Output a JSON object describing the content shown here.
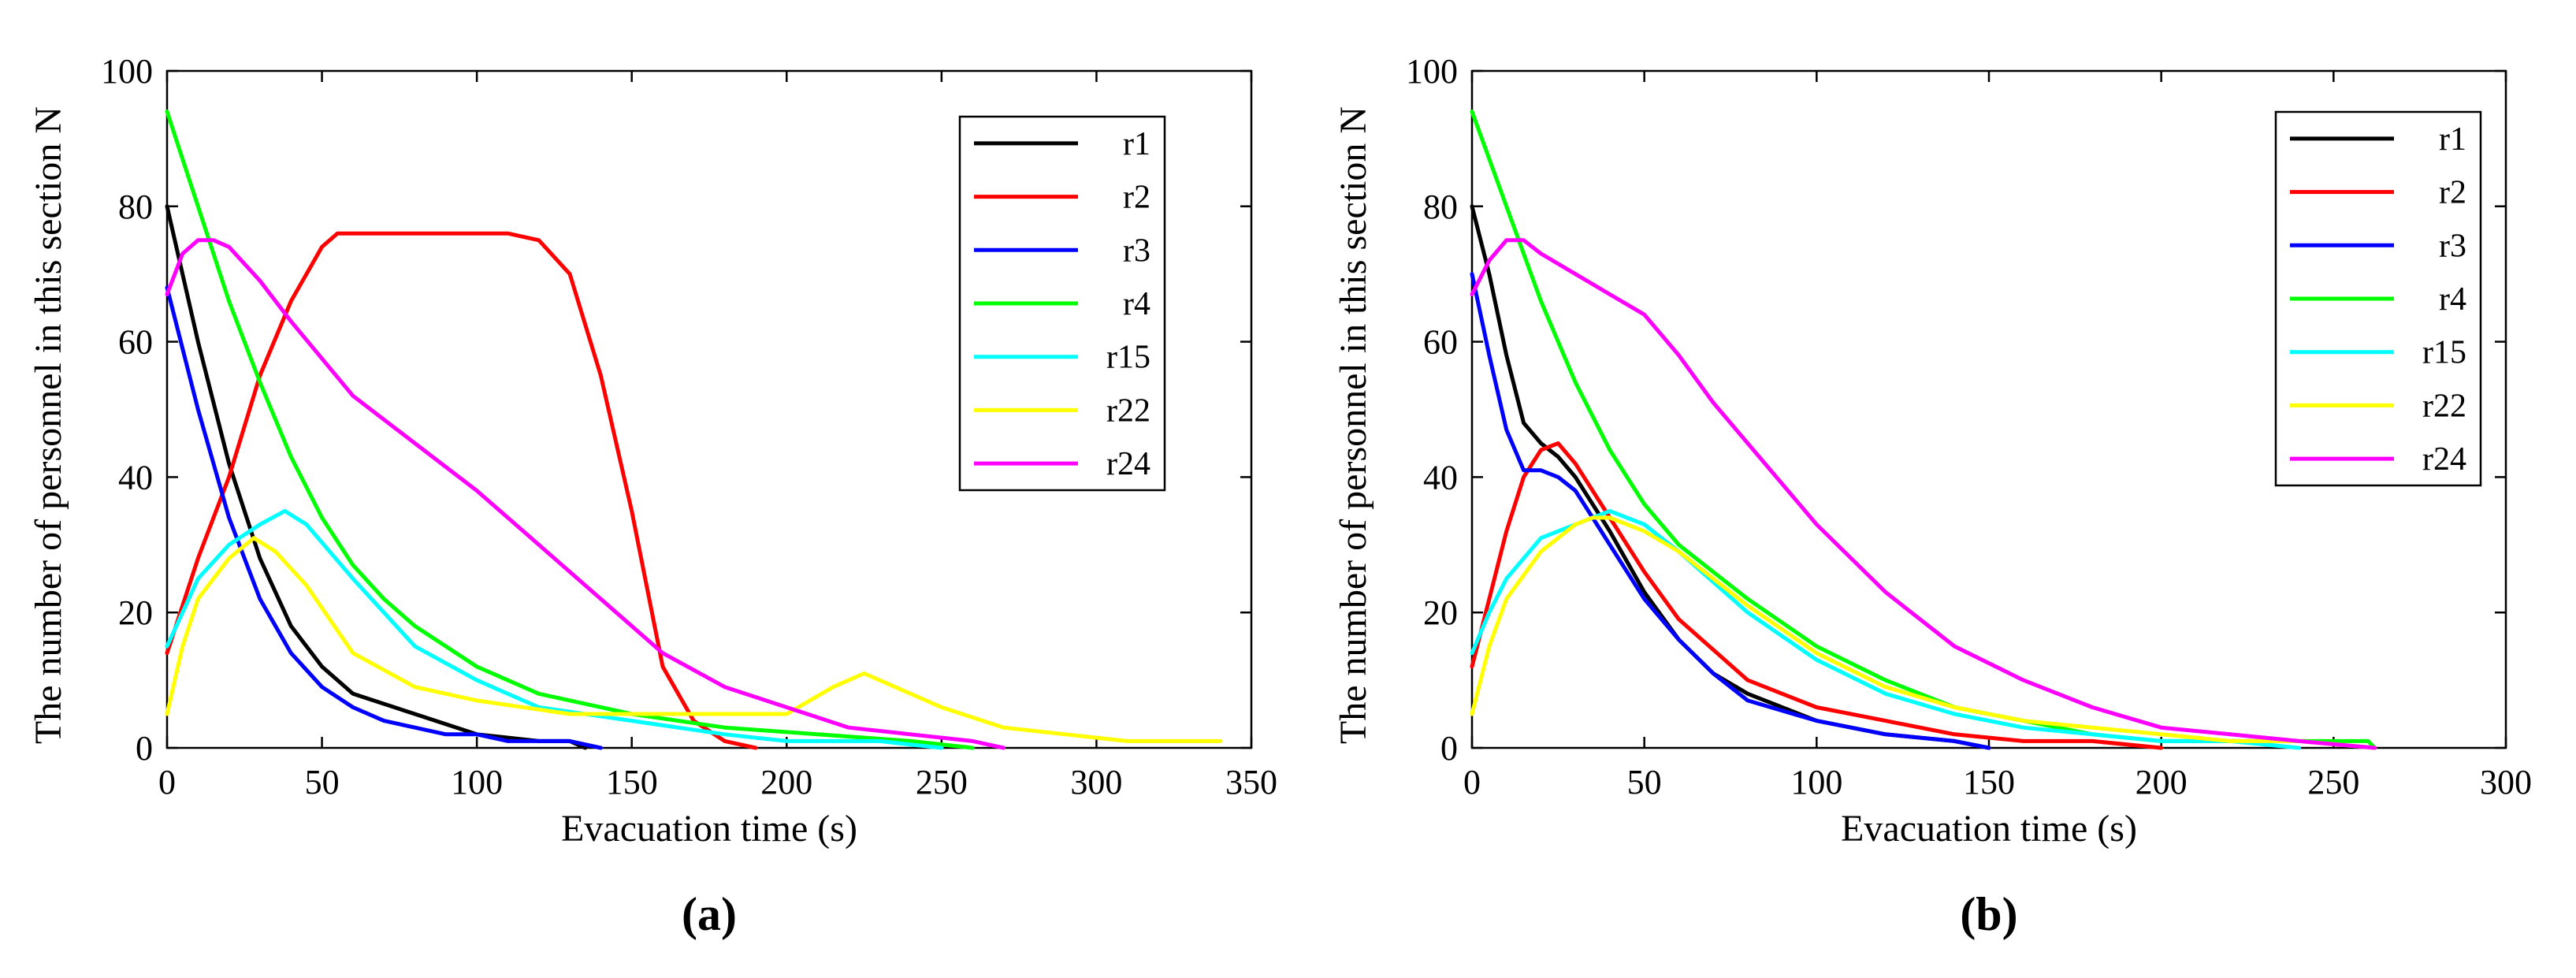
{
  "chart_data": [
    {
      "type": "line",
      "panel": "(a)",
      "xlabel": "Evacuation time (s)",
      "ylabel": "The number of personnel in this section N",
      "xlim": [
        0,
        350
      ],
      "ylim": [
        0,
        100
      ],
      "xticks": [
        0,
        50,
        100,
        150,
        200,
        250,
        300,
        350
      ],
      "yticks": [
        0,
        20,
        40,
        60,
        80,
        100
      ],
      "legend_position": "top-right",
      "series": [
        {
          "name": "r1",
          "color": "#000000",
          "x": [
            0,
            10,
            20,
            30,
            40,
            50,
            60,
            80,
            100,
            120,
            130,
            135
          ],
          "y": [
            80,
            60,
            42,
            28,
            18,
            12,
            8,
            5,
            2,
            1,
            1,
            0
          ]
        },
        {
          "name": "r2",
          "color": "#ff0000",
          "x": [
            0,
            10,
            20,
            30,
            40,
            50,
            55,
            60,
            80,
            100,
            110,
            120,
            130,
            140,
            150,
            160,
            170,
            180,
            190
          ],
          "y": [
            14,
            28,
            40,
            55,
            66,
            74,
            76,
            76,
            76,
            76,
            76,
            75,
            70,
            55,
            35,
            12,
            4,
            1,
            0
          ]
        },
        {
          "name": "r3",
          "color": "#0000ff",
          "x": [
            0,
            10,
            20,
            30,
            40,
            50,
            60,
            70,
            80,
            90,
            100,
            110,
            130,
            140
          ],
          "y": [
            68,
            50,
            34,
            22,
            14,
            9,
            6,
            4,
            3,
            2,
            2,
            1,
            1,
            0
          ]
        },
        {
          "name": "r4",
          "color": "#00ff00",
          "x": [
            0,
            10,
            20,
            30,
            40,
            50,
            60,
            70,
            80,
            100,
            120,
            150,
            180,
            210,
            240,
            260
          ],
          "y": [
            94,
            80,
            66,
            54,
            43,
            34,
            27,
            22,
            18,
            12,
            8,
            5,
            3,
            2,
            1,
            0
          ]
        },
        {
          "name": "r15",
          "color": "#00ffff",
          "x": [
            0,
            5,
            10,
            20,
            30,
            38,
            45,
            60,
            80,
            100,
            120,
            150,
            180,
            200,
            230,
            250
          ],
          "y": [
            15,
            20,
            25,
            30,
            33,
            35,
            33,
            25,
            15,
            10,
            6,
            4,
            2,
            1,
            1,
            0
          ]
        },
        {
          "name": "r22",
          "color": "#ffff00",
          "x": [
            0,
            5,
            10,
            20,
            28,
            35,
            45,
            60,
            80,
            100,
            130,
            160,
            180,
            200,
            215,
            225,
            235,
            250,
            270,
            290,
            310,
            320,
            340
          ],
          "y": [
            5,
            15,
            22,
            28,
            31,
            29,
            24,
            14,
            9,
            7,
            5,
            5,
            5,
            5,
            9,
            11,
            9,
            6,
            3,
            2,
            1,
            1,
            1
          ]
        },
        {
          "name": "r24",
          "color": "#ff00ff",
          "x": [
            0,
            5,
            10,
            15,
            20,
            30,
            40,
            60,
            80,
            100,
            120,
            140,
            160,
            180,
            200,
            220,
            240,
            260,
            270
          ],
          "y": [
            67,
            73,
            75,
            75,
            74,
            69,
            63,
            52,
            45,
            38,
            30,
            22,
            14,
            9,
            6,
            3,
            2,
            1,
            0
          ]
        }
      ]
    },
    {
      "type": "line",
      "panel": "(b)",
      "xlabel": "Evacuation time (s)",
      "ylabel": "The number of personnel in this section N",
      "xlim": [
        0,
        300
      ],
      "ylim": [
        0,
        100
      ],
      "xticks": [
        0,
        50,
        100,
        150,
        200,
        250,
        300
      ],
      "yticks": [
        0,
        20,
        40,
        60,
        80,
        100
      ],
      "legend_position": "top-right",
      "series": [
        {
          "name": "r1",
          "color": "#000000",
          "x": [
            0,
            5,
            10,
            15,
            20,
            25,
            30,
            40,
            50,
            60,
            70,
            80,
            100,
            120,
            140,
            150
          ],
          "y": [
            80,
            70,
            58,
            48,
            45,
            43,
            40,
            32,
            23,
            16,
            11,
            8,
            4,
            2,
            1,
            0
          ]
        },
        {
          "name": "r2",
          "color": "#ff0000",
          "x": [
            0,
            5,
            10,
            15,
            20,
            25,
            30,
            40,
            50,
            60,
            80,
            100,
            120,
            140,
            160,
            180,
            200
          ],
          "y": [
            12,
            22,
            32,
            40,
            44,
            45,
            42,
            34,
            26,
            19,
            10,
            6,
            4,
            2,
            1,
            1,
            0
          ]
        },
        {
          "name": "r3",
          "color": "#0000ff",
          "x": [
            0,
            5,
            10,
            15,
            20,
            25,
            30,
            35,
            40,
            50,
            60,
            70,
            80,
            100,
            120,
            140,
            150
          ],
          "y": [
            70,
            58,
            47,
            41,
            41,
            40,
            38,
            34,
            30,
            22,
            16,
            11,
            7,
            4,
            2,
            1,
            0
          ]
        },
        {
          "name": "r4",
          "color": "#00ff00",
          "x": [
            0,
            10,
            20,
            30,
            40,
            50,
            60,
            70,
            80,
            100,
            120,
            140,
            160,
            180,
            200,
            230,
            260,
            262
          ],
          "y": [
            94,
            80,
            66,
            54,
            44,
            36,
            30,
            26,
            22,
            15,
            10,
            6,
            4,
            2,
            1,
            1,
            1,
            0
          ]
        },
        {
          "name": "r15",
          "color": "#00ffff",
          "x": [
            0,
            5,
            10,
            20,
            30,
            40,
            50,
            60,
            80,
            100,
            120,
            140,
            160,
            180,
            200,
            220,
            240
          ],
          "y": [
            14,
            20,
            25,
            31,
            33,
            35,
            33,
            29,
            20,
            13,
            8,
            5,
            3,
            2,
            1,
            1,
            0
          ]
        },
        {
          "name": "r22",
          "color": "#ffff00",
          "x": [
            0,
            5,
            10,
            20,
            30,
            35,
            40,
            50,
            60,
            80,
            100,
            120,
            140,
            160,
            180,
            200,
            220,
            240,
            262
          ],
          "y": [
            5,
            15,
            22,
            29,
            33,
            34,
            34,
            32,
            29,
            21,
            14,
            9,
            6,
            4,
            3,
            2,
            1,
            1,
            0
          ]
        },
        {
          "name": "r24",
          "color": "#ff00ff",
          "x": [
            0,
            5,
            10,
            15,
            20,
            30,
            40,
            50,
            60,
            70,
            80,
            100,
            120,
            140,
            160,
            180,
            200,
            220,
            240,
            262
          ],
          "y": [
            67,
            72,
            75,
            75,
            73,
            70,
            67,
            64,
            58,
            51,
            45,
            33,
            23,
            15,
            10,
            6,
            3,
            2,
            1,
            0
          ]
        }
      ]
    }
  ]
}
